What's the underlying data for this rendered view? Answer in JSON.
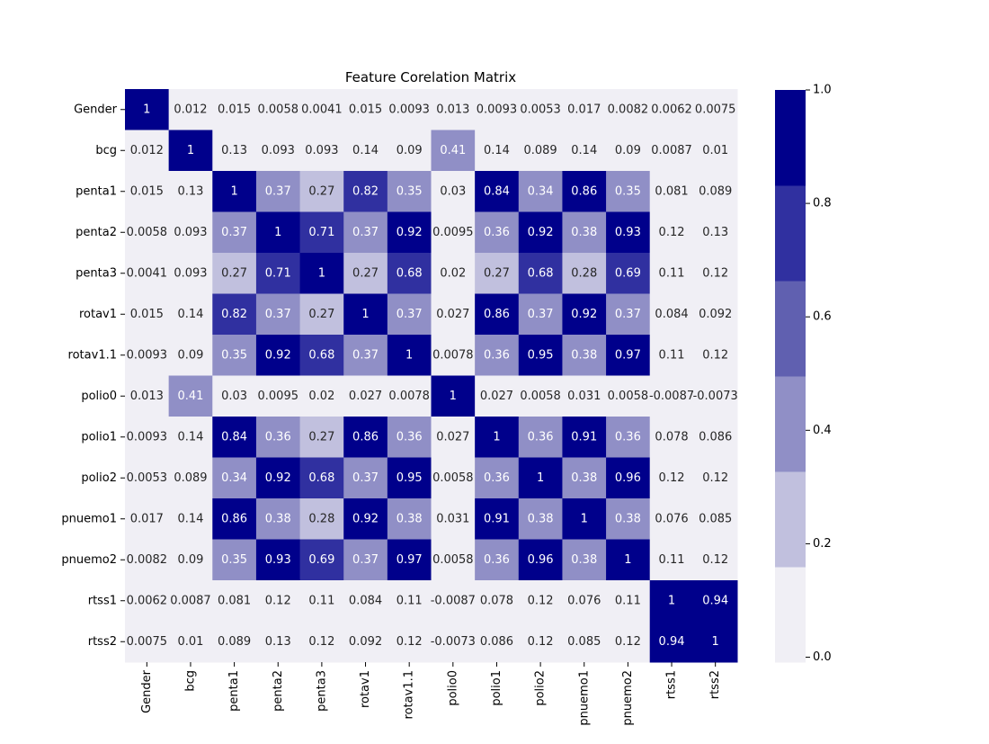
{
  "chart_data": {
    "type": "heatmap",
    "title": "Feature Corelation Matrix",
    "labels": [
      "Gender",
      "bcg",
      "penta1",
      "penta2",
      "penta3",
      "rotav1",
      "rotav1.1",
      "polio0",
      "polio1",
      "polio2",
      "pnuemo1",
      "pnuemo2",
      "rtss1",
      "rtss2"
    ],
    "matrix": [
      [
        1,
        0.012,
        0.015,
        0.0058,
        0.0041,
        0.015,
        0.0093,
        0.013,
        0.0093,
        0.0053,
        0.017,
        0.0082,
        0.0062,
        0.0075
      ],
      [
        0.012,
        1,
        0.13,
        0.093,
        0.093,
        0.14,
        0.09,
        0.41,
        0.14,
        0.089,
        0.14,
        0.09,
        0.0087,
        0.01
      ],
      [
        0.015,
        0.13,
        1,
        0.37,
        0.27,
        0.82,
        0.35,
        0.03,
        0.84,
        0.34,
        0.86,
        0.35,
        0.081,
        0.089
      ],
      [
        0.0058,
        0.093,
        0.37,
        1,
        0.71,
        0.37,
        0.92,
        0.0095,
        0.36,
        0.92,
        0.38,
        0.93,
        0.12,
        0.13
      ],
      [
        0.0041,
        0.093,
        0.27,
        0.71,
        1,
        0.27,
        0.68,
        0.02,
        0.27,
        0.68,
        0.28,
        0.69,
        0.11,
        0.12
      ],
      [
        0.015,
        0.14,
        0.82,
        0.37,
        0.27,
        1,
        0.37,
        0.027,
        0.86,
        0.37,
        0.92,
        0.37,
        0.084,
        0.092
      ],
      [
        0.0093,
        0.09,
        0.35,
        0.92,
        0.68,
        0.37,
        1,
        0.0078,
        0.36,
        0.95,
        0.38,
        0.97,
        0.11,
        0.12
      ],
      [
        0.013,
        0.41,
        0.03,
        0.0095,
        0.02,
        0.027,
        0.0078,
        1,
        0.027,
        0.0058,
        0.031,
        0.0058,
        -0.0087,
        -0.0073
      ],
      [
        0.0093,
        0.14,
        0.84,
        0.36,
        0.27,
        0.86,
        0.36,
        0.027,
        1,
        0.36,
        0.91,
        0.36,
        0.078,
        0.086
      ],
      [
        0.0053,
        0.089,
        0.34,
        0.92,
        0.68,
        0.37,
        0.95,
        0.0058,
        0.36,
        1,
        0.38,
        0.96,
        0.12,
        0.12
      ],
      [
        0.017,
        0.14,
        0.86,
        0.38,
        0.28,
        0.92,
        0.38,
        0.031,
        0.91,
        0.38,
        1,
        0.38,
        0.076,
        0.085
      ],
      [
        0.0082,
        0.09,
        0.35,
        0.93,
        0.69,
        0.37,
        0.97,
        0.0058,
        0.36,
        0.96,
        0.38,
        1,
        0.11,
        0.12
      ],
      [
        0.0062,
        0.0087,
        0.081,
        0.12,
        0.11,
        0.084,
        0.11,
        -0.0087,
        0.078,
        0.12,
        0.076,
        0.11,
        1,
        0.94
      ],
      [
        0.0075,
        0.01,
        0.089,
        0.13,
        0.12,
        0.092,
        0.12,
        -0.0073,
        0.086,
        0.12,
        0.085,
        0.12,
        0.94,
        1
      ]
    ],
    "colorbar": {
      "range": [
        -0.0087,
        1
      ],
      "ticks": [
        "0.0",
        "0.2",
        "0.4",
        "0.6",
        "0.8",
        "1.0"
      ],
      "tick_values": [
        0,
        0.2,
        0.4,
        0.6,
        0.8,
        1.0
      ],
      "colors": [
        "#f0eff5",
        "#c1c0de",
        "#908fc6",
        "#6060b0",
        "#3030a0",
        "#00008b"
      ]
    }
  }
}
